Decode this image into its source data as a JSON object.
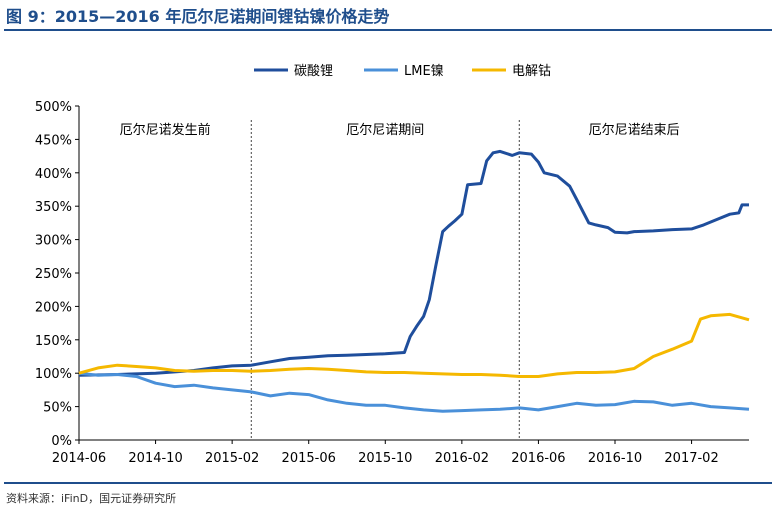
{
  "title": "图 9：2015—2016 年厄尔尼诺期间锂钴镍价格走势",
  "source": "资料来源：iFinD，国元证券研究所",
  "chart_data": {
    "type": "line",
    "xlabel": "",
    "ylabel": "",
    "ylim": [
      0,
      500
    ],
    "y_ticks": [
      "0%",
      "50%",
      "100%",
      "150%",
      "200%",
      "250%",
      "300%",
      "350%",
      "400%",
      "450%",
      "500%"
    ],
    "x_ticks": [
      "2014-06",
      "2014-10",
      "2015-02",
      "2015-06",
      "2015-10",
      "2016-02",
      "2016-06",
      "2016-10",
      "2017-02"
    ],
    "x_range": [
      "2014-06",
      "2017-05"
    ],
    "grid": false,
    "legend_position": "top-center",
    "period_dividers": [
      "2015-03",
      "2016-05"
    ],
    "period_labels": [
      "厄尔尼诺发生前",
      "厄尔尼诺期间",
      "厄尔尼诺结束后"
    ],
    "series": [
      {
        "name": "碳酸锂",
        "color": "#1f4e9c",
        "points": [
          [
            "2014-06",
            97
          ],
          [
            "2014-08",
            98
          ],
          [
            "2014-10",
            100
          ],
          [
            "2014-12",
            104
          ],
          [
            "2015-01",
            108
          ],
          [
            "2015-02",
            111
          ],
          [
            "2015-03",
            112
          ],
          [
            "2015-04",
            117
          ],
          [
            "2015-05",
            122
          ],
          [
            "2015-06",
            124
          ],
          [
            "2015-07",
            126
          ],
          [
            "2015-08",
            127
          ],
          [
            "2015-09",
            128
          ],
          [
            "2015-10",
            129
          ],
          [
            "2015-11",
            131
          ],
          [
            "2015-11-10",
            155
          ],
          [
            "2015-11-20",
            170
          ],
          [
            "2015-12-01",
            185
          ],
          [
            "2015-12-10",
            210
          ],
          [
            "2015-12-20",
            260
          ],
          [
            "2016-01-01",
            312
          ],
          [
            "2016-01-10",
            320
          ],
          [
            "2016-01-20",
            328
          ],
          [
            "2016-02-01",
            338
          ],
          [
            "2016-02-10",
            382
          ],
          [
            "2016-03-01",
            384
          ],
          [
            "2016-03-10",
            418
          ],
          [
            "2016-03-20",
            430
          ],
          [
            "2016-04-01",
            432
          ],
          [
            "2016-04-20",
            426
          ],
          [
            "2016-05-01",
            430
          ],
          [
            "2016-05-20",
            428
          ],
          [
            "2016-06-01",
            416
          ],
          [
            "2016-06-10",
            400
          ],
          [
            "2016-07-01",
            395
          ],
          [
            "2016-07-20",
            380
          ],
          [
            "2016-08-01",
            360
          ],
          [
            "2016-08-20",
            325
          ],
          [
            "2016-09-01",
            322
          ],
          [
            "2016-09-20",
            318
          ],
          [
            "2016-10-01",
            311
          ],
          [
            "2016-10-20",
            310
          ],
          [
            "2016-11-01",
            312
          ],
          [
            "2016-12-01",
            313
          ],
          [
            "2017-01-01",
            315
          ],
          [
            "2017-02-01",
            316
          ],
          [
            "2017-02-20",
            322
          ],
          [
            "2017-03-10",
            330
          ],
          [
            "2017-04-01",
            338
          ],
          [
            "2017-04-15",
            340
          ],
          [
            "2017-04-20",
            352
          ],
          [
            "2017-05-01",
            352
          ]
        ]
      },
      {
        "name": "LME镍",
        "color": "#4a90d9",
        "points": [
          [
            "2014-06",
            100
          ],
          [
            "2014-07",
            97
          ],
          [
            "2014-08",
            98
          ],
          [
            "2014-09",
            95
          ],
          [
            "2014-10",
            85
          ],
          [
            "2014-11",
            80
          ],
          [
            "2014-12",
            82
          ],
          [
            "2015-01",
            78
          ],
          [
            "2015-02",
            75
          ],
          [
            "2015-03",
            72
          ],
          [
            "2015-04",
            66
          ],
          [
            "2015-05",
            70
          ],
          [
            "2015-06",
            68
          ],
          [
            "2015-07",
            60
          ],
          [
            "2015-08",
            55
          ],
          [
            "2015-09",
            52
          ],
          [
            "2015-10",
            52
          ],
          [
            "2015-11",
            48
          ],
          [
            "2015-12",
            45
          ],
          [
            "2016-01",
            43
          ],
          [
            "2016-02",
            44
          ],
          [
            "2016-03",
            45
          ],
          [
            "2016-04",
            46
          ],
          [
            "2016-05",
            48
          ],
          [
            "2016-06",
            45
          ],
          [
            "2016-07",
            50
          ],
          [
            "2016-08",
            55
          ],
          [
            "2016-09",
            52
          ],
          [
            "2016-10",
            53
          ],
          [
            "2016-11",
            58
          ],
          [
            "2016-12",
            57
          ],
          [
            "2017-01",
            52
          ],
          [
            "2017-02",
            55
          ],
          [
            "2017-03",
            50
          ],
          [
            "2017-04",
            48
          ],
          [
            "2017-05",
            46
          ]
        ]
      },
      {
        "name": "电解钴",
        "color": "#f5b800",
        "points": [
          [
            "2014-06",
            100
          ],
          [
            "2014-07",
            108
          ],
          [
            "2014-08",
            112
          ],
          [
            "2014-09",
            110
          ],
          [
            "2014-10",
            108
          ],
          [
            "2014-11",
            104
          ],
          [
            "2014-12",
            103
          ],
          [
            "2015-01",
            104
          ],
          [
            "2015-02",
            104
          ],
          [
            "2015-03",
            103
          ],
          [
            "2015-04",
            104
          ],
          [
            "2015-05",
            106
          ],
          [
            "2015-06",
            107
          ],
          [
            "2015-07",
            106
          ],
          [
            "2015-08",
            104
          ],
          [
            "2015-09",
            102
          ],
          [
            "2015-10",
            101
          ],
          [
            "2015-11",
            101
          ],
          [
            "2015-12",
            100
          ],
          [
            "2016-01",
            99
          ],
          [
            "2016-02",
            98
          ],
          [
            "2016-03",
            98
          ],
          [
            "2016-04",
            97
          ],
          [
            "2016-05",
            95
          ],
          [
            "2016-06",
            95
          ],
          [
            "2016-07",
            99
          ],
          [
            "2016-08",
            101
          ],
          [
            "2016-09",
            101
          ],
          [
            "2016-10",
            102
          ],
          [
            "2016-11",
            107
          ],
          [
            "2016-12",
            125
          ],
          [
            "2017-01",
            136
          ],
          [
            "2017-02",
            148
          ],
          [
            "2017-02-15",
            181
          ],
          [
            "2017-03",
            186
          ],
          [
            "2017-04",
            188
          ],
          [
            "2017-05",
            180
          ]
        ]
      }
    ]
  }
}
